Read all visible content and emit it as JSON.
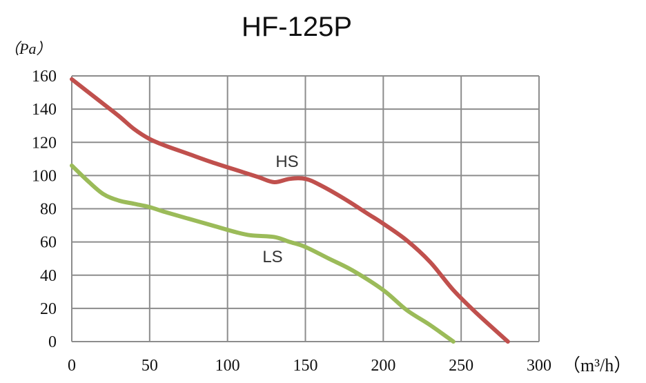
{
  "chart_data": {
    "type": "line",
    "title": "HF-125P",
    "ylabel": "（Pa）",
    "xlabel": "（m³/h）",
    "xlim": [
      0,
      300
    ],
    "ylim": [
      0,
      160
    ],
    "x_ticks": [
      "0",
      "50",
      "100",
      "150",
      "200",
      "250",
      "300"
    ],
    "y_ticks": [
      "0",
      "20",
      "40",
      "60",
      "80",
      "100",
      "120",
      "140",
      "160"
    ],
    "grid": true,
    "series": [
      {
        "name": "HS",
        "color": "#c0504d",
        "points": [
          [
            0,
            158
          ],
          [
            15,
            147
          ],
          [
            30,
            136
          ],
          [
            40,
            128
          ],
          [
            50,
            122
          ],
          [
            60,
            118
          ],
          [
            75,
            113
          ],
          [
            90,
            108
          ],
          [
            110,
            102
          ],
          [
            120,
            99
          ],
          [
            130,
            96
          ],
          [
            140,
            98
          ],
          [
            150,
            98
          ],
          [
            160,
            94
          ],
          [
            175,
            86
          ],
          [
            190,
            77
          ],
          [
            200,
            71
          ],
          [
            215,
            61
          ],
          [
            230,
            48
          ],
          [
            245,
            31
          ],
          [
            260,
            17
          ],
          [
            280,
            0
          ]
        ]
      },
      {
        "name": "LS",
        "color": "#9bbb59",
        "points": [
          [
            0,
            106
          ],
          [
            10,
            97
          ],
          [
            20,
            89
          ],
          [
            30,
            85
          ],
          [
            40,
            83
          ],
          [
            50,
            81
          ],
          [
            60,
            78
          ],
          [
            75,
            74
          ],
          [
            90,
            70
          ],
          [
            105,
            66
          ],
          [
            115,
            64
          ],
          [
            130,
            63
          ],
          [
            140,
            60
          ],
          [
            150,
            57
          ],
          [
            165,
            50
          ],
          [
            180,
            43
          ],
          [
            200,
            31
          ],
          [
            215,
            19
          ],
          [
            230,
            10
          ],
          [
            245,
            0
          ]
        ]
      }
    ]
  }
}
